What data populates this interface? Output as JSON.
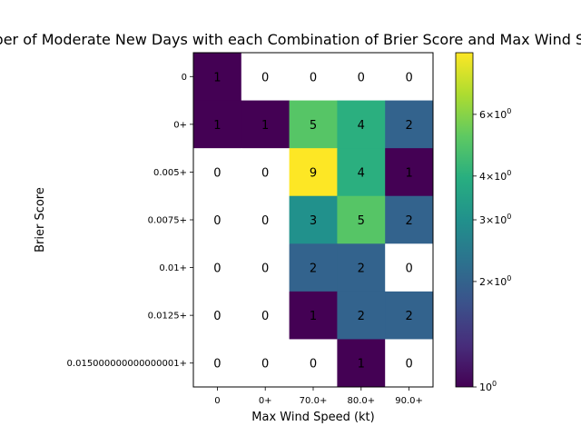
{
  "chart_data": {
    "type": "heatmap",
    "title": "Number of Moderate New Days with each Combination of Brier Score and Max Wind Speed",
    "xlabel": "Max Wind Speed (kt)",
    "ylabel": "Brier Score",
    "x_categories": [
      "0",
      "0+",
      "70.0+",
      "80.0+",
      "90.0+"
    ],
    "y_categories": [
      "0",
      "0+",
      "0.005+",
      "0.0075+",
      "0.01+",
      "0.0125+",
      "0.015000000000000001+"
    ],
    "values": [
      [
        1,
        0,
        0,
        0,
        0
      ],
      [
        1,
        1,
        5,
        4,
        2
      ],
      [
        0,
        0,
        9,
        4,
        1
      ],
      [
        0,
        0,
        3,
        5,
        2
      ],
      [
        0,
        0,
        2,
        2,
        0
      ],
      [
        0,
        0,
        1,
        2,
        2
      ],
      [
        0,
        0,
        0,
        1,
        0
      ]
    ],
    "zero_cell_color": "#ffffff",
    "colorscale": "viridis",
    "color_scale_type": "log",
    "colorbar": {
      "range": [
        1,
        9
      ],
      "tick_labels": [
        "10^0",
        "2×10^0",
        "3×10^0",
        "4×10^0",
        "6×10^0"
      ],
      "tick_values": [
        1,
        2,
        3,
        4,
        6
      ]
    },
    "grid": false
  }
}
